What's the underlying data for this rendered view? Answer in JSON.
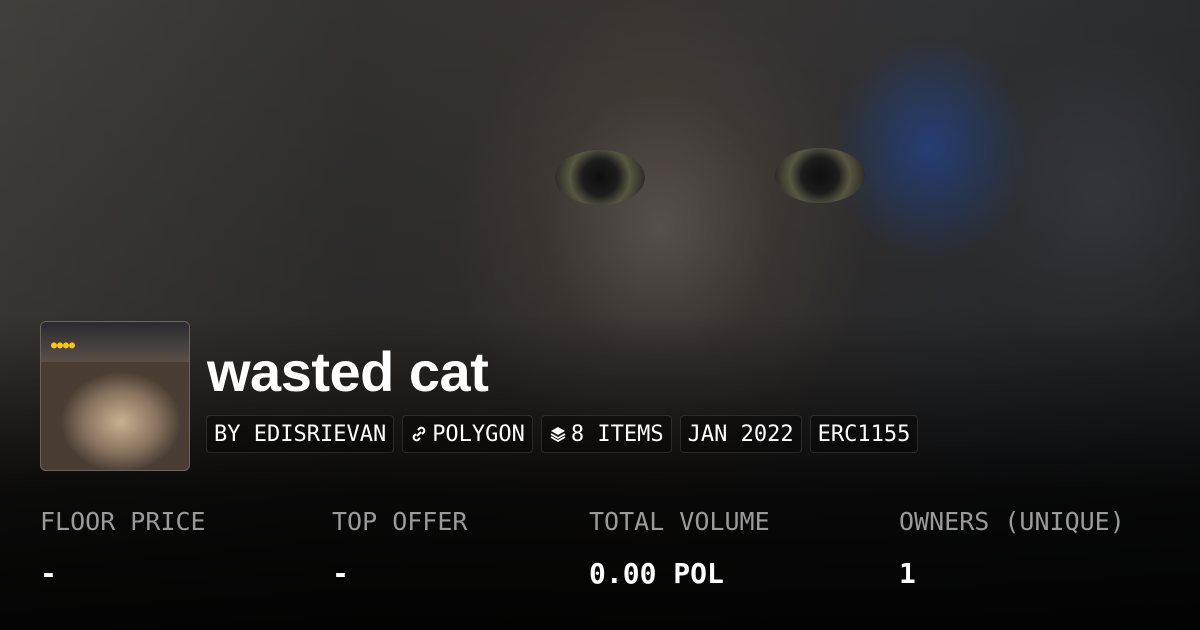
{
  "collection": {
    "title": "wasted cat",
    "badges": [
      {
        "label": "BY EDISRIEVAN",
        "icon": null
      },
      {
        "label": "POLYGON",
        "icon": "chain-link-icon"
      },
      {
        "label": "8 ITEMS",
        "icon": "layers-icon"
      },
      {
        "label": "JAN 2022",
        "icon": null
      },
      {
        "label": "ERC1155",
        "icon": null
      }
    ]
  },
  "stats": [
    {
      "label": "FLOOR PRICE",
      "value": "-"
    },
    {
      "label": "TOP OFFER",
      "value": "-"
    },
    {
      "label": "TOTAL VOLUME",
      "value": "0.00 POL"
    },
    {
      "label": "OWNERS (UNIQUE)",
      "value": "1"
    }
  ]
}
